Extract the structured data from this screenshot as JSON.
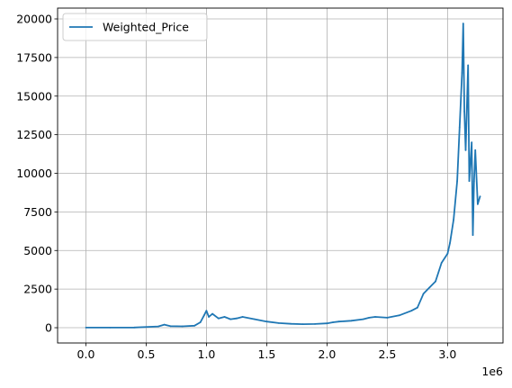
{
  "chart_data": {
    "type": "line",
    "title": "",
    "xlabel": "",
    "ylabel": "",
    "x_offset_label": "1e6",
    "xlim": [
      -235000,
      3460000
    ],
    "ylim": [
      -990,
      20700
    ],
    "x_ticks": [
      0,
      500000,
      1000000,
      1500000,
      2000000,
      2500000,
      3000000
    ],
    "x_tick_labels": [
      "0.0",
      "0.5",
      "1.0",
      "1.5",
      "2.0",
      "2.5",
      "3.0"
    ],
    "y_ticks": [
      0,
      2500,
      5000,
      7500,
      10000,
      12500,
      15000,
      17500,
      20000
    ],
    "y_tick_labels": [
      "0",
      "2500",
      "5000",
      "7500",
      "10000",
      "12500",
      "15000",
      "17500",
      "20000"
    ],
    "grid": true,
    "legend_position": "upper-left",
    "series": [
      {
        "name": "Weighted_Price",
        "color": "#1f77b4",
        "x": [
          0,
          200000,
          400000,
          600000,
          650000,
          700000,
          800000,
          900000,
          950000,
          980000,
          1000000,
          1020000,
          1050000,
          1100000,
          1150000,
          1200000,
          1250000,
          1300000,
          1400000,
          1500000,
          1600000,
          1700000,
          1800000,
          1900000,
          2000000,
          2050000,
          2100000,
          2200000,
          2300000,
          2350000,
          2400000,
          2500000,
          2600000,
          2700000,
          2750000,
          2800000,
          2850000,
          2900000,
          2950000,
          3000000,
          3020000,
          3050000,
          3080000,
          3100000,
          3120000,
          3130000,
          3140000,
          3150000,
          3170000,
          3180000,
          3200000,
          3210000,
          3220000,
          3230000,
          3250000,
          3270000
        ],
        "y": [
          5,
          6,
          15,
          80,
          200,
          100,
          90,
          130,
          350,
          800,
          1100,
          700,
          900,
          600,
          700,
          550,
          600,
          700,
          550,
          400,
          300,
          250,
          230,
          240,
          280,
          350,
          400,
          450,
          550,
          650,
          700,
          650,
          800,
          1100,
          1300,
          2200,
          2600,
          3000,
          4200,
          4800,
          5500,
          7000,
          9500,
          13000,
          16500,
          19700,
          14000,
          11500,
          17000,
          9500,
          12000,
          6000,
          9500,
          11500,
          8000,
          8500
        ]
      }
    ]
  }
}
